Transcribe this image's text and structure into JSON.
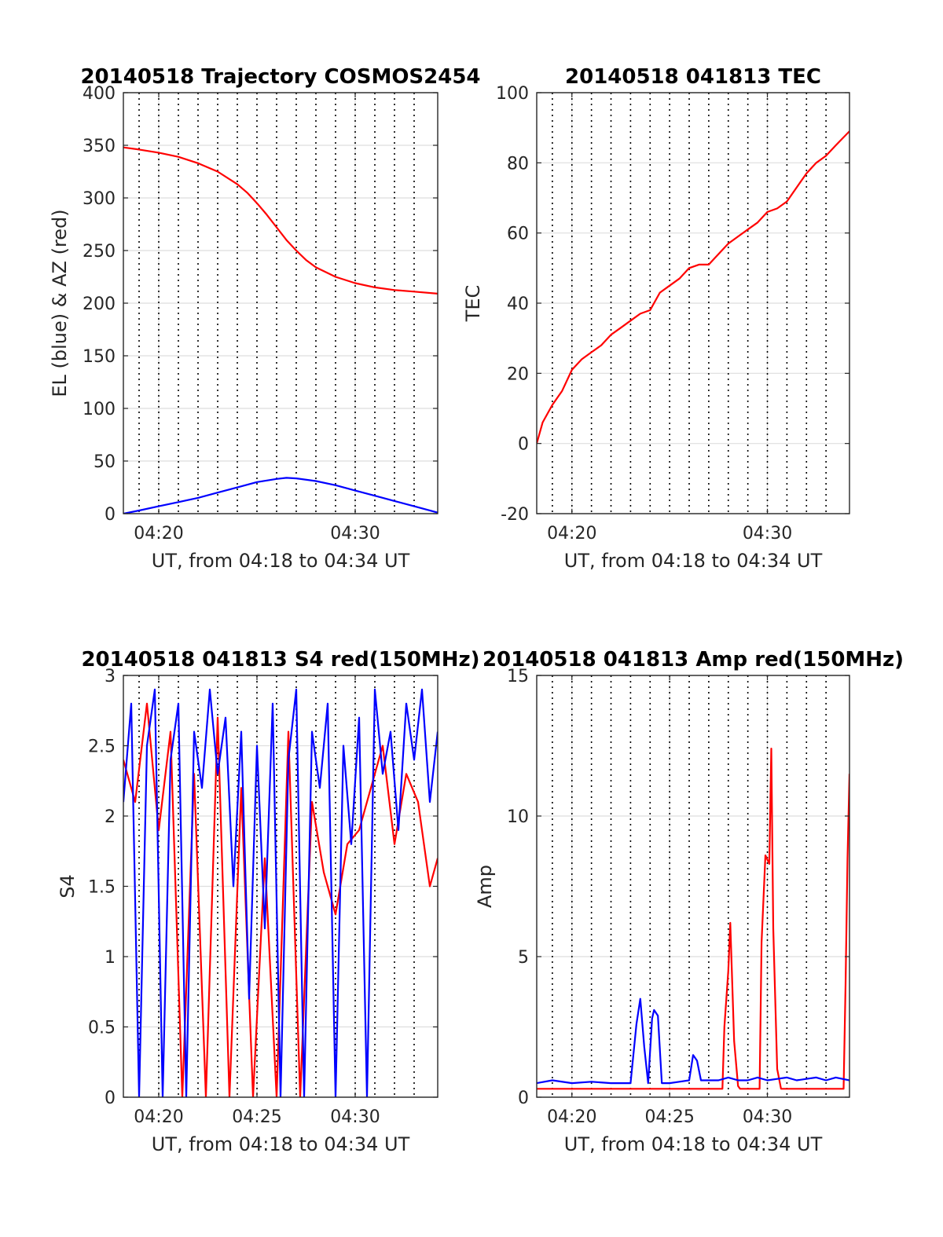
{
  "chart_data": [
    {
      "type": "line",
      "title": "20140518 Trajectory COSMOS2454",
      "xlabel": "UT, from 04:18 to 04:34 UT",
      "ylabel": "EL (blue) & AZ (red)",
      "xlim": [
        18.2,
        34.2
      ],
      "ylim": [
        0,
        400
      ],
      "x_ticks": [
        20,
        30
      ],
      "x_tick_labels": [
        "04:20",
        "04:30"
      ],
      "y_ticks": [
        0,
        50,
        100,
        150,
        200,
        250,
        300,
        350,
        400
      ],
      "y_tick_labels": [
        "0",
        "50",
        "100",
        "150",
        "200",
        "250",
        "300",
        "350",
        "400"
      ],
      "grid": true,
      "series": [
        {
          "color": "#ff0000",
          "x": [
            18.2,
            19,
            20,
            21,
            22,
            23,
            24,
            24.5,
            25,
            25.5,
            26,
            26.5,
            27,
            27.5,
            28,
            29,
            30,
            31,
            32,
            33,
            34.2
          ],
          "values": [
            348,
            346,
            343,
            339,
            333,
            325,
            313,
            305,
            295,
            284,
            272,
            260,
            250,
            241,
            234,
            225,
            219,
            215,
            212.5,
            211,
            209
          ]
        },
        {
          "color": "#0000ff",
          "x": [
            18.2,
            19,
            20,
            21,
            22,
            23,
            24,
            25,
            26,
            26.5,
            27,
            28,
            29,
            30,
            31,
            32,
            33,
            34.2
          ],
          "values": [
            0,
            3,
            7,
            11,
            15,
            20,
            25,
            30,
            33,
            34,
            33.5,
            31,
            27,
            22,
            17,
            12,
            7,
            1
          ]
        }
      ]
    },
    {
      "type": "line",
      "title": "20140518 041813 TEC",
      "xlabel": "UT, from 04:18 to 04:34 UT",
      "ylabel": "TEC",
      "xlim": [
        18.2,
        34.2
      ],
      "ylim": [
        -20,
        100
      ],
      "x_ticks": [
        20,
        30
      ],
      "x_tick_labels": [
        "04:20",
        "04:30"
      ],
      "y_ticks": [
        -20,
        0,
        20,
        40,
        60,
        80,
        100
      ],
      "y_tick_labels": [
        "-20",
        "0",
        "20",
        "40",
        "60",
        "80",
        "100"
      ],
      "grid": true,
      "series": [
        {
          "color": "#ff0000",
          "x": [
            18.2,
            18.5,
            19,
            19.5,
            20,
            20.5,
            21,
            21.5,
            22,
            22.5,
            23,
            23.5,
            24,
            24.5,
            25,
            25.5,
            26,
            26.5,
            27,
            27.5,
            28,
            28.5,
            29,
            29.5,
            30,
            30.5,
            31,
            31.5,
            32,
            32.5,
            33,
            33.5,
            34.2
          ],
          "values": [
            0,
            6,
            11,
            15,
            21,
            24,
            26,
            28,
            31,
            33,
            35,
            37,
            38,
            43,
            45,
            47,
            50,
            51,
            51,
            54,
            57,
            59,
            61,
            63,
            66,
            67,
            69,
            73,
            77,
            80,
            82,
            85,
            89
          ]
        }
      ]
    },
    {
      "type": "line",
      "title": "20140518 041813 S4 red(150MHz)",
      "xlabel": "UT, from 04:18 to 04:34 UT",
      "ylabel": "S4",
      "xlim": [
        18.2,
        34.2
      ],
      "ylim": [
        0,
        3
      ],
      "x_ticks": [
        20,
        25,
        30
      ],
      "x_tick_labels": [
        "04:20",
        "04:25",
        "04:30"
      ],
      "y_ticks": [
        0,
        0.5,
        1,
        1.5,
        2,
        2.5,
        3
      ],
      "y_tick_labels": [
        "0",
        "0.5",
        "1",
        "1.5",
        "2",
        "2.5",
        "3"
      ],
      "grid": true,
      "series": [
        {
          "color": "#ff0000",
          "x": [
            18.2,
            18.8,
            19.4,
            20,
            20.6,
            21.2,
            21.8,
            22.4,
            23,
            23.6,
            24.2,
            24.8,
            25.4,
            26,
            26.6,
            27.2,
            27.8,
            28.4,
            29,
            29.6,
            30.2,
            30.8,
            31.4,
            32,
            32.6,
            33.2,
            33.8,
            34.2
          ],
          "values": [
            2.4,
            2.1,
            2.8,
            1.9,
            2.6,
            0,
            2.3,
            0,
            2.7,
            0,
            2.2,
            0,
            1.7,
            0,
            2.6,
            0,
            2.1,
            1.6,
            1.3,
            1.8,
            1.9,
            2.2,
            2.5,
            1.8,
            2.3,
            2.1,
            1.5,
            1.7
          ]
        },
        {
          "color": "#0000ff",
          "x": [
            18.2,
            18.6,
            19,
            19.4,
            19.8,
            20.2,
            20.6,
            21,
            21.4,
            21.8,
            22.2,
            22.6,
            23,
            23.4,
            23.8,
            24.2,
            24.6,
            25,
            25.4,
            25.8,
            26.2,
            26.6,
            27,
            27.4,
            27.8,
            28.2,
            28.6,
            29,
            29.4,
            29.8,
            30.2,
            30.6,
            31,
            31.4,
            31.8,
            32.2,
            32.6,
            33,
            33.4,
            33.8,
            34.2
          ],
          "values": [
            2.1,
            2.8,
            0,
            2.5,
            2.9,
            0,
            2.4,
            2.8,
            0,
            2.6,
            2.2,
            2.9,
            2.3,
            2.7,
            1.5,
            2.6,
            0.7,
            2.5,
            1.2,
            2.8,
            0,
            2.4,
            2.9,
            0,
            2.6,
            2.2,
            2.8,
            0,
            2.5,
            1.8,
            2.7,
            0,
            2.9,
            2.3,
            2.6,
            1.9,
            2.8,
            2.4,
            2.9,
            2.1,
            2.6
          ]
        }
      ]
    },
    {
      "type": "line",
      "title": "20140518 041813 Amp red(150MHz)",
      "xlabel": "UT, from 04:18 to 04:34 UT",
      "ylabel": "Amp",
      "xlim": [
        18.2,
        34.2
      ],
      "ylim": [
        0,
        15
      ],
      "x_ticks": [
        20,
        25,
        30
      ],
      "x_tick_labels": [
        "04:20",
        "04:25",
        "04:30"
      ],
      "y_ticks": [
        0,
        5,
        10,
        15
      ],
      "y_tick_labels": [
        "0",
        "5",
        "10",
        "15"
      ],
      "grid": true,
      "series": [
        {
          "color": "#ff0000",
          "x": [
            18.2,
            27.7,
            27.8,
            28,
            28.1,
            28.3,
            28.5,
            28.6,
            29.6,
            29.7,
            29.9,
            30.1,
            30.2,
            30.3,
            30.5,
            30.7,
            33.9,
            34,
            34.1,
            34.2
          ],
          "values": [
            0.3,
            0.3,
            2.5,
            4.5,
            6.2,
            2.0,
            0.4,
            0.3,
            0.3,
            5.5,
            8.6,
            8.3,
            12.4,
            6.0,
            1.0,
            0.3,
            0.3,
            4.0,
            8.5,
            11.5
          ]
        },
        {
          "color": "#0000ff",
          "x": [
            18.2,
            19,
            20,
            21,
            22,
            23,
            23.3,
            23.5,
            23.7,
            23.9,
            24.1,
            24.2,
            24.4,
            24.6,
            25,
            25.5,
            26,
            26.2,
            26.4,
            26.6,
            27,
            27.5,
            28,
            28.5,
            29,
            29.5,
            30,
            30.5,
            31,
            31.5,
            32,
            32.5,
            33,
            33.5,
            34.2
          ],
          "values": [
            0.5,
            0.6,
            0.5,
            0.55,
            0.5,
            0.5,
            2.6,
            3.5,
            1.8,
            0.5,
            2.8,
            3.1,
            2.9,
            0.5,
            0.5,
            0.55,
            0.6,
            1.5,
            1.3,
            0.6,
            0.6,
            0.6,
            0.7,
            0.6,
            0.6,
            0.7,
            0.6,
            0.65,
            0.7,
            0.6,
            0.65,
            0.7,
            0.6,
            0.7,
            0.6
          ]
        }
      ]
    }
  ]
}
